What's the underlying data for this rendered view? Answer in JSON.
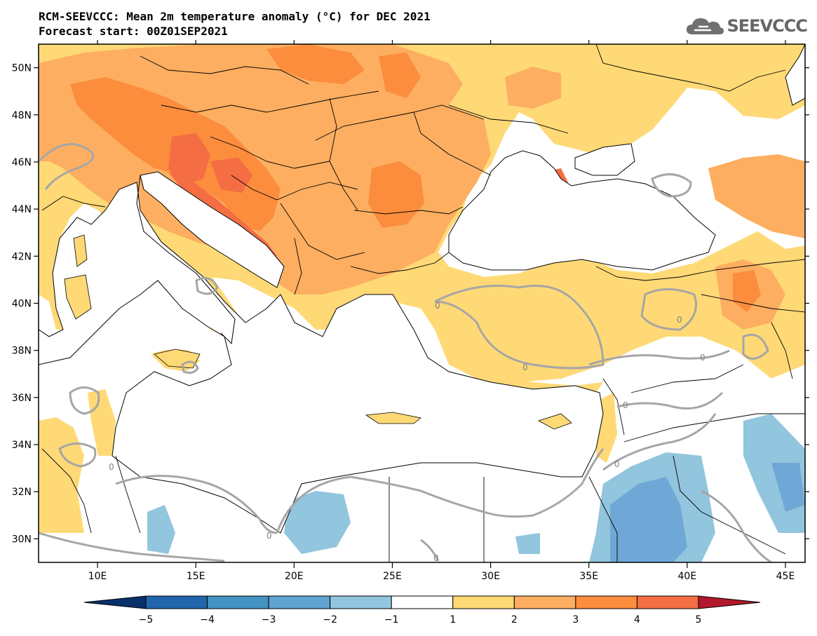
{
  "header": {
    "title": "RCM-SEEVCCC: Mean 2m temperature anomaly (°C) for DEC 2021",
    "subtitle": "Forecast start: 00Z01SEP2021"
  },
  "logo": {
    "text": "SEEVCCC",
    "icon": "cloud-icon"
  },
  "map": {
    "variable": "Mean 2m temperature anomaly",
    "unit": "°C",
    "lon_range": [
      7,
      46
    ],
    "lat_range": [
      29,
      51
    ],
    "lon_ticks": [
      {
        "value": 10,
        "label": "10E"
      },
      {
        "value": 15,
        "label": "15E"
      },
      {
        "value": 20,
        "label": "20E"
      },
      {
        "value": 25,
        "label": "25E"
      },
      {
        "value": 30,
        "label": "30E"
      },
      {
        "value": 35,
        "label": "35E"
      },
      {
        "value": 40,
        "label": "40E"
      },
      {
        "value": 45,
        "label": "45E"
      }
    ],
    "lat_ticks": [
      {
        "value": 50,
        "label": "50N"
      },
      {
        "value": 48,
        "label": "48N"
      },
      {
        "value": 46,
        "label": "46N"
      },
      {
        "value": 44,
        "label": "44N"
      },
      {
        "value": 42,
        "label": "42N"
      },
      {
        "value": 40,
        "label": "40N"
      },
      {
        "value": 38,
        "label": "38N"
      },
      {
        "value": 36,
        "label": "36N"
      },
      {
        "value": 34,
        "label": "34N"
      },
      {
        "value": 32,
        "label": "32N"
      },
      {
        "value": 30,
        "label": "30N"
      }
    ],
    "contour_label": "0"
  },
  "colorbar": {
    "labels": [
      "−5",
      "−4",
      "−3",
      "−2",
      "−1",
      "1",
      "2",
      "3",
      "4",
      "5"
    ],
    "colors": [
      "#2166ac",
      "#4393c3",
      "#5fa3d1",
      "#92c5de",
      "#ffffff",
      "#fed976",
      "#fdae61",
      "#fb8d3d",
      "#f46d43",
      "#d73027"
    ],
    "low_extend_color": "#08306b",
    "high_extend_color": "#b2182b"
  }
}
